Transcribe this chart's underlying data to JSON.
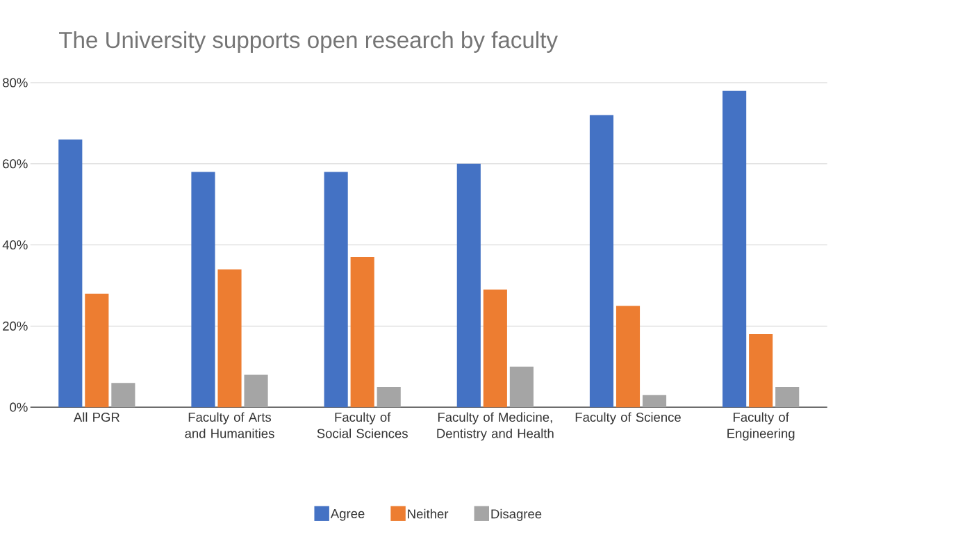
{
  "chart_data": {
    "type": "bar",
    "title": "The University supports open research by faculty",
    "categories": [
      "All PGR",
      "Faculty of Arts and Humanities",
      "Faculty of Social Sciences",
      "Faculty of Medicine, Dentistry and Health",
      "Faculty of Science",
      "Faculty of Engineering"
    ],
    "series": [
      {
        "name": "Agree",
        "color": "#4472c4",
        "values": [
          66,
          58,
          58,
          60,
          72,
          78
        ]
      },
      {
        "name": "Neither",
        "color": "#ed7d31",
        "values": [
          28,
          34,
          37,
          29,
          25,
          18
        ]
      },
      {
        "name": "Disagree",
        "color": "#a5a5a5",
        "values": [
          6,
          8,
          5,
          10,
          3,
          5
        ]
      }
    ],
    "ylim": [
      0,
      80
    ],
    "yticks": [
      {
        "value": 0,
        "label": "0%"
      },
      {
        "value": 20,
        "label": "20%"
      },
      {
        "value": 40,
        "label": "40%"
      },
      {
        "value": 60,
        "label": "60%"
      },
      {
        "value": 80,
        "label": "80%"
      }
    ],
    "grid": "y",
    "legend": "bottom"
  }
}
